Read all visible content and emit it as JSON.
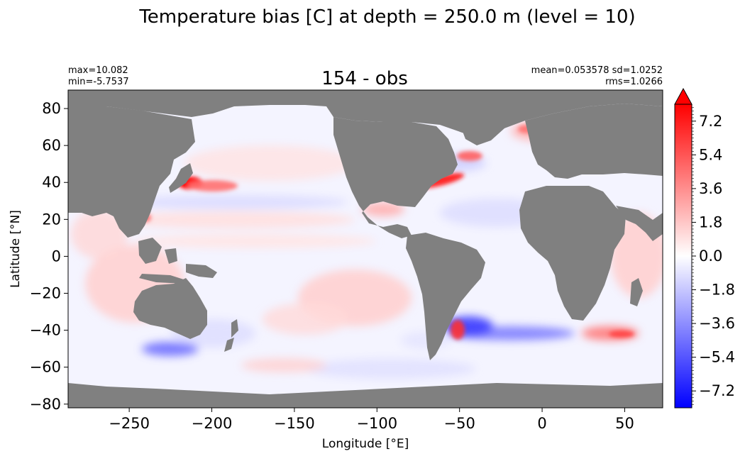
{
  "chart_data": {
    "type": "heatmap",
    "suptitle": "Temperature bias [C] at depth = 250.0 m (level = 10)",
    "title": "154 - obs",
    "stats": {
      "max": "max=10.082",
      "min": "min=-5.7537",
      "mean_sd": "mean=0.053578 sd=1.0252",
      "rms": "rms=1.0266"
    },
    "xlabel": "Longitude [°E]",
    "ylabel": "Latitude [°N]",
    "xlim": [
      -287,
      73
    ],
    "ylim": [
      -82,
      90
    ],
    "x_ticks": [
      -250,
      -200,
      -150,
      -100,
      -50,
      0,
      50
    ],
    "x_tick_labels": [
      "−250",
      "−200",
      "−150",
      "−100",
      "−50",
      "0",
      "50"
    ],
    "y_ticks": [
      80,
      60,
      40,
      20,
      0,
      -20,
      -40,
      -60,
      -80
    ],
    "y_tick_labels": [
      "80",
      "60",
      "40",
      "20",
      "0",
      "−20",
      "−40",
      "−60",
      "−80"
    ],
    "colorbar": {
      "vmin": -8.1,
      "vmax": 8.1,
      "extend": "max",
      "colormap": "bwr",
      "ticks": [
        7.2,
        5.4,
        3.6,
        1.8,
        0.0,
        -1.8,
        -3.6,
        -5.4,
        -7.2
      ],
      "tick_labels": [
        "7.2",
        "5.4",
        "3.6",
        "1.8",
        "0.0",
        "−1.8",
        "−3.6",
        "−5.4",
        "−7.2"
      ]
    },
    "colors": {
      "land": "#808080",
      "ocean": "#f4f4ff",
      "warm": "#ff0000",
      "cold": "#0000ff"
    }
  }
}
